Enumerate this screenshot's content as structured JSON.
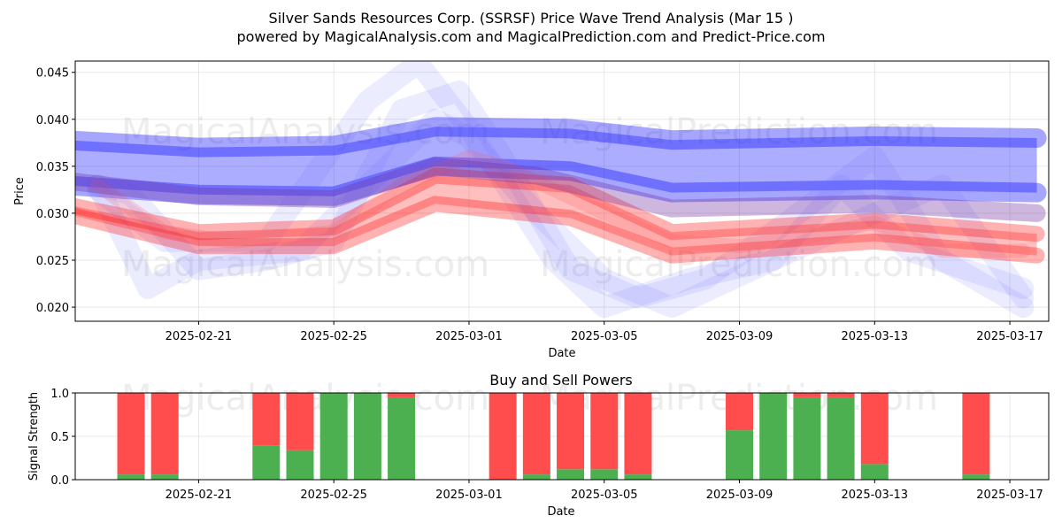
{
  "title_line1": "Silver Sands Resources Corp. (SSRSF) Price Wave Trend Analysis (Mar 15 )",
  "title_line2": "powered by MagicalAnalysis.com and MagicalPrediction.com and Predict-Price.com",
  "watermarks": [
    "MagicalAnalysis.com",
    "MagicalPrediction.com"
  ],
  "colors": {
    "buy": "#4caf50",
    "sell": "#ff4d4d",
    "blue_band": "#0000ff",
    "red_band": "#ff0000"
  },
  "chart_data": [
    {
      "type": "area",
      "title": "",
      "xlabel": "Date",
      "ylabel": "Price",
      "ylim": [
        0.0185,
        0.0462
      ],
      "x_start": "2025-02-17",
      "x_end": "2025-03-18",
      "xticks": [
        "2025-02-21",
        "2025-02-25",
        "2025-03-01",
        "2025-03-05",
        "2025-03-09",
        "2025-03-13",
        "2025-03-17"
      ],
      "yticks": [
        "0.020",
        "0.025",
        "0.030",
        "0.035",
        "0.040",
        "0.045"
      ],
      "grid": true,
      "series": [
        {
          "name": "blue-band-upper",
          "color": "#0000ff",
          "x": [
            "2025-02-17",
            "2025-02-21",
            "2025-02-25",
            "2025-02-28",
            "2025-03-04",
            "2025-03-07",
            "2025-03-13",
            "2025-03-17.8"
          ],
          "values": [
            0.0378,
            0.037,
            0.0372,
            0.0392,
            0.039,
            0.0378,
            0.0382,
            0.038
          ]
        },
        {
          "name": "blue-band-lower",
          "color": "#0000ff",
          "x": [
            "2025-02-17",
            "2025-02-21",
            "2025-02-25",
            "2025-02-28",
            "2025-03-04",
            "2025-03-07",
            "2025-03-13",
            "2025-03-17.8"
          ],
          "values": [
            0.033,
            0.032,
            0.0318,
            0.035,
            0.0345,
            0.0322,
            0.0325,
            0.0322
          ]
        },
        {
          "name": "purple-band",
          "color": "#7030a0",
          "x": [
            "2025-02-17",
            "2025-02-21",
            "2025-02-25",
            "2025-02-28",
            "2025-03-03",
            "2025-03-07",
            "2025-03-13",
            "2025-03-17.8"
          ],
          "values": [
            0.0335,
            0.0318,
            0.0315,
            0.035,
            0.034,
            0.0305,
            0.031,
            0.03
          ]
        },
        {
          "name": "red-band-upper",
          "color": "#ff0000",
          "x": [
            "2025-02-17",
            "2025-02-21",
            "2025-02-25",
            "2025-02-28",
            "2025-03-04",
            "2025-03-07",
            "2025-03-13",
            "2025-03-17.8"
          ],
          "values": [
            0.031,
            0.028,
            0.0285,
            0.034,
            0.033,
            0.028,
            0.0292,
            0.0278
          ]
        },
        {
          "name": "red-band-lower",
          "color": "#ff0000",
          "x": [
            "2025-02-17",
            "2025-02-21",
            "2025-02-25",
            "2025-02-28",
            "2025-03-04",
            "2025-03-07",
            "2025-03-13",
            "2025-03-17.8"
          ],
          "values": [
            0.03,
            0.0265,
            0.0265,
            0.031,
            0.0295,
            0.0255,
            0.027,
            0.0255
          ]
        },
        {
          "name": "wave-1",
          "color": "#6a6aff",
          "x": [
            "2025-02-18",
            "2025-02-19",
            "2025-02-21",
            "2025-02-23",
            "2025-02-25",
            "2025-02-27",
            "2025-02-28.7",
            "2025-03-02",
            "2025-03-04",
            "2025-03-06",
            "2025-03-08",
            "2025-03-10",
            "2025-03-13",
            "2025-03-15",
            "2025-03-17.4"
          ],
          "values": [
            0.033,
            0.032,
            0.024,
            0.025,
            0.027,
            0.041,
            0.043,
            0.036,
            0.024,
            0.021,
            0.023,
            0.028,
            0.036,
            0.025,
            0.02
          ]
        },
        {
          "name": "wave-2",
          "color": "#6a6aff",
          "x": [
            "2025-02-18",
            "2025-02-19.5",
            "2025-02-21",
            "2025-02-24",
            "2025-02-26",
            "2025-02-28",
            "2025-03-01",
            "2025-03-03",
            "2025-03-05",
            "2025-03-07",
            "2025-03-10",
            "2025-03-12",
            "2025-03-14",
            "2025-03-17.4"
          ],
          "values": [
            0.033,
            0.022,
            0.025,
            0.026,
            0.033,
            0.04,
            0.038,
            0.03,
            0.023,
            0.02,
            0.025,
            0.033,
            0.026,
            0.022
          ]
        },
        {
          "name": "wave-3",
          "color": "#6a6aff",
          "x": [
            "2025-02-18",
            "2025-02-20",
            "2025-02-23",
            "2025-02-26",
            "2025-02-27.5",
            "2025-03-01",
            "2025-03-03.5",
            "2025-03-05",
            "2025-03-07.5",
            "2025-03-10",
            "2025-03-13",
            "2025-03-15",
            "2025-03-17.4"
          ],
          "values": [
            0.0325,
            0.027,
            0.027,
            0.042,
            0.046,
            0.039,
            0.025,
            0.02,
            0.023,
            0.025,
            0.03,
            0.033,
            0.021
          ]
        },
        {
          "name": "wave-red-1",
          "color": "#ff6060",
          "x": [
            "2025-02-18",
            "2025-02-20",
            "2025-02-22",
            "2025-02-25",
            "2025-02-27",
            "2025-02-29",
            "2025-03-02",
            "2025-03-05",
            "2025-03-07",
            "2025-03-09",
            "2025-03-11",
            "2025-03-13",
            "2025-03-15",
            "2025-03-17.4"
          ],
          "values": [
            0.033,
            0.028,
            0.027,
            0.028,
            0.033,
            0.036,
            0.035,
            0.03,
            0.027,
            0.0265,
            0.0275,
            0.029,
            0.026,
            0.026
          ]
        }
      ]
    },
    {
      "type": "bar",
      "stacked": true,
      "title": "Buy and Sell Powers",
      "xlabel": "Date",
      "ylabel": "Signal Strength",
      "ylim": [
        0,
        1
      ],
      "yticks": [
        "0.0",
        "0.5",
        "1.0"
      ],
      "xticks": [
        "2025-02-21",
        "2025-02-25",
        "2025-03-01",
        "2025-03-05",
        "2025-03-09",
        "2025-03-13",
        "2025-03-17"
      ],
      "categories": [
        "2025-02-19",
        "2025-02-20",
        "2025-02-23",
        "2025-02-24",
        "2025-02-25",
        "2025-02-26",
        "2025-02-27",
        "2025-03-02",
        "2025-03-03",
        "2025-03-04",
        "2025-03-05",
        "2025-03-06",
        "2025-03-09",
        "2025-03-10",
        "2025-03-11",
        "2025-03-12",
        "2025-03-13",
        "2025-03-16"
      ],
      "series": [
        {
          "name": "Buy",
          "color": "#4caf50",
          "values": [
            0.06,
            0.06,
            0.39,
            0.34,
            1.0,
            1.0,
            0.95,
            0.0,
            0.06,
            0.12,
            0.12,
            0.06,
            0.57,
            1.0,
            0.95,
            0.95,
            0.18,
            0.06
          ]
        },
        {
          "name": "Sell",
          "color": "#ff4d4d",
          "values": [
            0.94,
            0.94,
            0.61,
            0.66,
            0.0,
            0.0,
            0.05,
            1.0,
            0.94,
            0.88,
            0.88,
            0.94,
            0.43,
            0.0,
            0.05,
            0.05,
            0.82,
            0.94
          ]
        }
      ]
    }
  ]
}
